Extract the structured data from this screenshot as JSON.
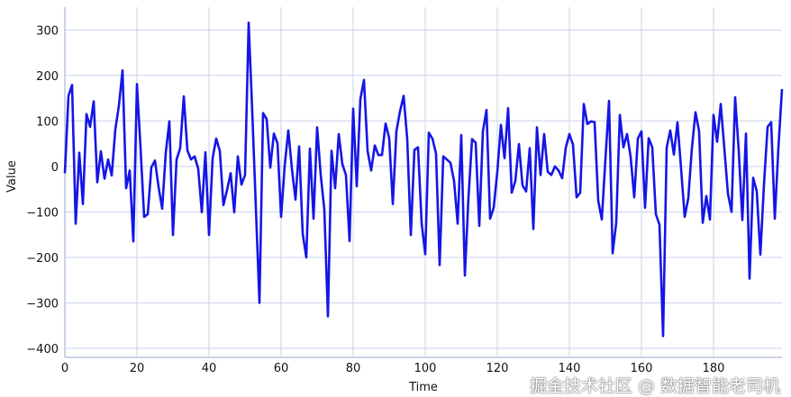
{
  "chart_data": {
    "type": "line",
    "title": "",
    "xlabel": "Time",
    "ylabel": "Value",
    "xlim": [
      0,
      199
    ],
    "ylim": [
      -420,
      350
    ],
    "xticks": [
      0,
      20,
      40,
      60,
      80,
      100,
      120,
      140,
      160,
      180
    ],
    "yticks": [
      300,
      200,
      100,
      0,
      -100,
      -200,
      -300,
      -400
    ],
    "grid": true,
    "line_color": "#1515e6",
    "grid_color": "#c9d3ea",
    "values": [
      -15,
      155,
      179,
      -126,
      30,
      -83,
      115,
      87,
      143,
      -35,
      33,
      -27,
      15,
      -20,
      81,
      134,
      211,
      -48,
      -9,
      -165,
      181,
      40,
      -111,
      -105,
      -2,
      13,
      -45,
      -93,
      30,
      99,
      -151,
      15,
      40,
      154,
      35,
      15,
      22,
      -5,
      -101,
      31,
      -151,
      18,
      61,
      34,
      -85,
      -52,
      -15,
      -101,
      22,
      -40,
      -19,
      316,
      120,
      -90,
      -300,
      117,
      104,
      -3,
      72,
      51,
      -111,
      1,
      79,
      -5,
      -73,
      44,
      -148,
      -200,
      39,
      -115,
      86,
      -19,
      -95,
      -330,
      34,
      -48,
      71,
      5,
      -19,
      -164,
      127,
      -44,
      148,
      190,
      34,
      -9,
      46,
      25,
      25,
      94,
      62,
      -83,
      77,
      121,
      155,
      61,
      -151,
      36,
      42,
      -124,
      -193,
      74,
      61,
      28,
      -217,
      22,
      15,
      8,
      -32,
      -126,
      69,
      -240,
      -68,
      60,
      52,
      -131,
      77,
      124,
      -115,
      -91,
      -12,
      91,
      18,
      128,
      -58,
      -32,
      49,
      -42,
      -55,
      40,
      -138,
      86,
      -19,
      71,
      -12,
      -19,
      0,
      -9,
      -26,
      41,
      71,
      48,
      -68,
      -58,
      137,
      93,
      99,
      97,
      -75,
      -117,
      15,
      144,
      -191,
      -124,
      113,
      42,
      71,
      21,
      -68,
      61,
      77,
      -91,
      62,
      42,
      -105,
      -128,
      -373,
      41,
      79,
      26,
      97,
      -5,
      -111,
      -70,
      40,
      119,
      77,
      -124,
      -65,
      -117,
      113,
      54,
      137,
      40,
      -60,
      -100,
      152,
      34,
      -118,
      72,
      -247,
      -25,
      -55,
      -194,
      -40,
      87,
      97,
      -115,
      40,
      170
    ]
  },
  "watermark": "掘金技术社区 @ 数据智能老司机"
}
